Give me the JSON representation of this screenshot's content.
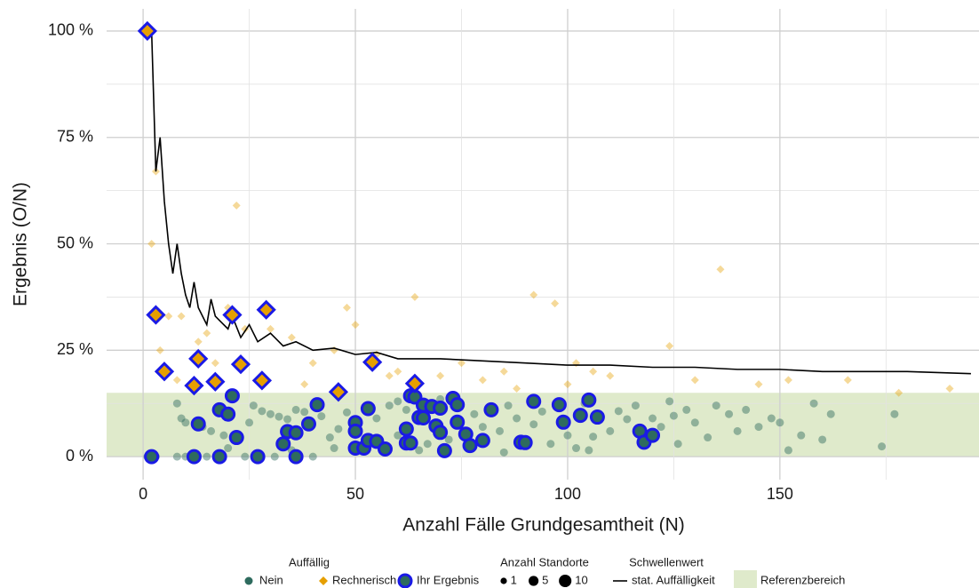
{
  "chart_data": {
    "type": "scatter",
    "x_label": "Anzahl Fälle Grundgesamtheit (N)",
    "y_label": "Ergebnis (O/N)",
    "xlim": [
      -8.6,
      196.9
    ],
    "ylim": [
      -5.4,
      105.2
    ],
    "xticks": [
      0,
      50,
      100,
      150
    ],
    "yticks": [
      {
        "value": 0,
        "label": "0 %"
      },
      {
        "value": 25,
        "label": "25 %"
      },
      {
        "value": 50,
        "label": "50 %"
      },
      {
        "value": 75,
        "label": "75 %"
      },
      {
        "value": 100,
        "label": "100 %"
      }
    ],
    "grid": true,
    "legend": {
      "title": "Auffällig",
      "position": "bottom"
    },
    "series": [
      {
        "name": "Nein",
        "color": "#2e6b5e",
        "opacity": 0.45,
        "shape": "circle",
        "x": [
          1,
          3,
          8,
          10,
          15,
          24,
          31,
          40,
          8,
          9,
          10,
          14,
          16,
          19,
          25,
          26,
          28,
          30,
          32,
          34,
          36,
          38,
          42,
          44,
          46,
          48,
          55,
          58,
          60,
          62,
          67,
          72,
          78,
          80,
          84,
          86,
          88,
          92,
          94,
          96,
          100,
          102,
          104,
          106,
          110,
          112,
          114,
          116,
          120,
          122,
          124,
          126,
          128,
          130,
          133,
          135,
          138,
          140,
          142,
          145,
          148,
          150,
          152,
          155,
          158,
          160,
          162,
          174,
          177,
          20,
          35,
          45,
          65,
          85,
          105,
          125,
          60,
          70
        ],
        "y": [
          0,
          0,
          0,
          0,
          0,
          0,
          0,
          0,
          12.5,
          9,
          8,
          7,
          6,
          5,
          8,
          12,
          10.7,
          10,
          9.4,
          8.8,
          11,
          10.5,
          9.5,
          4.5,
          6.5,
          10.4,
          9,
          12,
          5,
          11,
          3,
          4,
          10,
          7,
          6,
          12,
          9,
          7.6,
          10.6,
          3,
          5,
          2,
          12.5,
          4.7,
          6,
          10.7,
          8.8,
          12,
          9,
          7,
          13,
          3,
          11,
          8,
          4.5,
          12,
          10,
          6,
          11,
          7,
          9,
          8,
          1.5,
          5,
          12.5,
          4,
          10,
          2.4,
          10,
          2,
          1.5,
          2,
          1.5,
          1,
          1.5,
          9.6,
          13,
          13.5
        ]
      },
      {
        "name": "Rechnerisch",
        "color": "#e69f00",
        "opacity": 0.4,
        "shape": "diamond",
        "x": [
          3,
          2,
          22,
          6,
          4,
          15,
          20,
          48,
          50,
          45,
          64,
          92,
          97,
          136,
          124,
          106,
          166,
          178,
          190,
          30,
          35,
          40,
          55,
          60,
          70,
          80,
          85,
          100,
          110,
          145,
          9,
          24,
          13,
          38,
          58,
          75,
          88,
          102,
          130,
          152,
          8,
          17
        ],
        "y": [
          67,
          50,
          59,
          33,
          25,
          29,
          35,
          35,
          31,
          25,
          37.5,
          38,
          36,
          44,
          26,
          20,
          18,
          15,
          16,
          30,
          28,
          22,
          24,
          20,
          19,
          18,
          20,
          17,
          19,
          17,
          33,
          30,
          27,
          17,
          19,
          22,
          16,
          22,
          18,
          18,
          18,
          22
        ]
      }
    ],
    "highlight": {
      "name": "Ihr Ergebnis",
      "color": "#1a1ae6",
      "series": [
        {
          "x": [
            2,
            12,
            18,
            27,
            36,
            13,
            18,
            20,
            21,
            22,
            33,
            34,
            36,
            39,
            41,
            50,
            50,
            50,
            52,
            53,
            53,
            55,
            57,
            62,
            62,
            63,
            63,
            64,
            65,
            66,
            66,
            68,
            69,
            70,
            70,
            71,
            73,
            74,
            74,
            76,
            77,
            80,
            82,
            89,
            90,
            92,
            98,
            99,
            103,
            105,
            107,
            117,
            118,
            120
          ],
          "y": [
            0,
            0,
            0,
            0,
            0,
            7.7,
            11,
            10,
            14.3,
            4.5,
            3,
            5.9,
            5.6,
            7.7,
            12.2,
            8,
            6,
            2,
            2,
            3.8,
            11.3,
            3.6,
            1.8,
            6.5,
            3.2,
            3.2,
            14.3,
            14,
            9.2,
            12.1,
            9.1,
            11.8,
            7.2,
            5.7,
            11.4,
            1.4,
            13.7,
            12.2,
            8.1,
            5.3,
            2.6,
            3.8,
            11,
            3.4,
            3.3,
            13,
            12.2,
            8.1,
            9.7,
            13.3,
            9.3,
            6,
            3.4,
            5
          ]
        },
        {
          "x": [
            1,
            3,
            5,
            12,
            13,
            17,
            21,
            23,
            28,
            29,
            46,
            54,
            64
          ],
          "y": [
            100,
            33.3,
            20,
            16.7,
            23,
            17.6,
            33.3,
            21.7,
            17.9,
            34.5,
            15.2,
            22.2,
            17.2
          ]
        }
      ]
    },
    "threshold": {
      "title": "Schwellenwert",
      "name": "stat. Auffälligkeit",
      "color": "#000000",
      "x": [
        1,
        2,
        3,
        4,
        5,
        6,
        7,
        8,
        9,
        10,
        11,
        12,
        13,
        14,
        15,
        16,
        17,
        18,
        20,
        21,
        23,
        25,
        27,
        30,
        33,
        36,
        40,
        45,
        50,
        55,
        60,
        70,
        80,
        90,
        100,
        110,
        120,
        130,
        140,
        150,
        160,
        170,
        180,
        195
      ],
      "y": [
        100,
        100,
        67,
        75,
        60,
        50,
        43,
        50,
        43,
        38,
        35,
        41,
        35,
        33,
        31,
        37,
        33,
        32,
        30,
        33,
        28,
        31,
        27,
        29,
        26,
        27,
        25,
        25.5,
        24,
        24.5,
        23,
        23,
        22.5,
        22,
        21.5,
        21.5,
        21,
        21,
        20.5,
        20.5,
        20,
        20,
        20,
        19.5
      ]
    },
    "reference": {
      "name": "Referenzbereich",
      "range": [
        0,
        15
      ],
      "color": "#dfeacb"
    },
    "size_legend": {
      "title": "Anzahl Standorte",
      "values": [
        1,
        5,
        10
      ]
    }
  }
}
